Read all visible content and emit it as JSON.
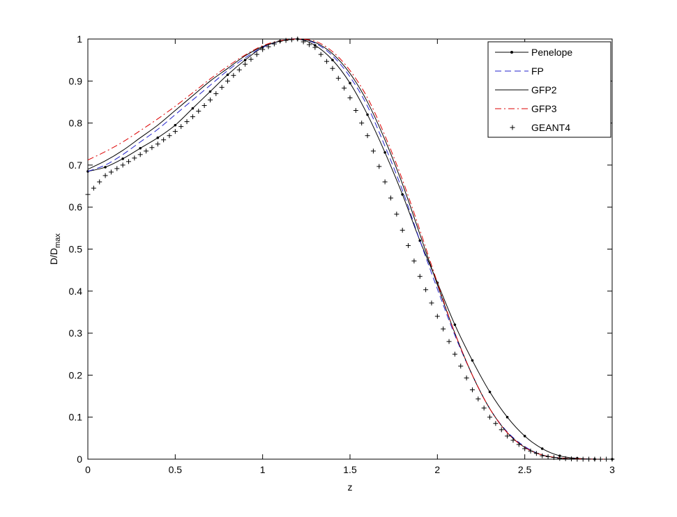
{
  "chart_data": {
    "type": "line",
    "title": "",
    "xlabel": "z",
    "ylabel": "D/D",
    "ylabel_subscript": "max",
    "xlim": [
      0,
      3
    ],
    "ylim": [
      0,
      1
    ],
    "xticks": [
      0,
      0.5,
      1,
      1.5,
      2,
      2.5,
      3
    ],
    "xtick_labels": [
      "0",
      "0.5",
      "1",
      "1.5",
      "2",
      "2.5",
      "3"
    ],
    "yticks": [
      0,
      0.1,
      0.2,
      0.3,
      0.4,
      0.5,
      0.6,
      0.7,
      0.8,
      0.9,
      1
    ],
    "ytick_labels": [
      "0",
      "0.1",
      "0.2",
      "0.3",
      "0.4",
      "0.5",
      "0.6",
      "0.7",
      "0.8",
      "0.9",
      "1"
    ],
    "grid": false,
    "legend_position": "top-right",
    "x": [
      0,
      0.1,
      0.2,
      0.3,
      0.4,
      0.5,
      0.6,
      0.7,
      0.8,
      0.9,
      1.0,
      1.1,
      1.2,
      1.3,
      1.4,
      1.5,
      1.6,
      1.7,
      1.8,
      1.9,
      2.0,
      2.1,
      2.2,
      2.3,
      2.4,
      2.5,
      2.6,
      2.7,
      2.8,
      2.9,
      3.0
    ],
    "series": [
      {
        "name": "Penelope",
        "color": "#000000",
        "style": "solid-dot",
        "values": [
          0.685,
          0.695,
          0.715,
          0.74,
          0.765,
          0.795,
          0.835,
          0.875,
          0.915,
          0.95,
          0.98,
          0.995,
          1.0,
          0.985,
          0.95,
          0.895,
          0.82,
          0.73,
          0.63,
          0.52,
          0.42,
          0.32,
          0.235,
          0.16,
          0.1,
          0.055,
          0.025,
          0.008,
          0.002,
          0.0,
          0.0
        ]
      },
      {
        "name": "FP",
        "color": "#2222cc",
        "style": "dashed",
        "values": [
          0.685,
          0.7,
          0.725,
          0.755,
          0.785,
          0.82,
          0.855,
          0.89,
          0.925,
          0.955,
          0.98,
          0.995,
          1.0,
          0.99,
          0.96,
          0.91,
          0.84,
          0.745,
          0.64,
          0.52,
          0.405,
          0.295,
          0.2,
          0.12,
          0.065,
          0.03,
          0.01,
          0.003,
          0.001,
          0.0,
          0.0
        ]
      },
      {
        "name": "GFP2",
        "color": "#000000",
        "style": "solid",
        "values": [
          0.69,
          0.71,
          0.735,
          0.765,
          0.795,
          0.83,
          0.865,
          0.9,
          0.93,
          0.96,
          0.982,
          0.995,
          1.0,
          0.992,
          0.965,
          0.918,
          0.85,
          0.76,
          0.655,
          0.535,
          0.415,
          0.3,
          0.2,
          0.12,
          0.063,
          0.028,
          0.01,
          0.003,
          0.001,
          0.0,
          0.0
        ]
      },
      {
        "name": "GFP3",
        "color": "#dd0000",
        "style": "dashdot",
        "values": [
          0.712,
          0.732,
          0.755,
          0.782,
          0.81,
          0.84,
          0.872,
          0.905,
          0.935,
          0.962,
          0.984,
          0.996,
          1.0,
          0.995,
          0.97,
          0.925,
          0.86,
          0.77,
          0.665,
          0.545,
          0.42,
          0.3,
          0.2,
          0.12,
          0.063,
          0.028,
          0.01,
          0.003,
          0.001,
          0.0,
          0.0
        ]
      },
      {
        "name": "GEANT4",
        "color": "#000000",
        "style": "plus",
        "values": [
          0.63,
          0.675,
          0.7,
          0.725,
          0.75,
          0.78,
          0.815,
          0.855,
          0.9,
          0.94,
          0.975,
          0.995,
          1.0,
          0.98,
          0.93,
          0.86,
          0.77,
          0.66,
          0.545,
          0.435,
          0.34,
          0.25,
          0.165,
          0.1,
          0.055,
          0.025,
          0.008,
          0.002,
          0.0,
          0.0,
          0.0
        ]
      }
    ]
  }
}
